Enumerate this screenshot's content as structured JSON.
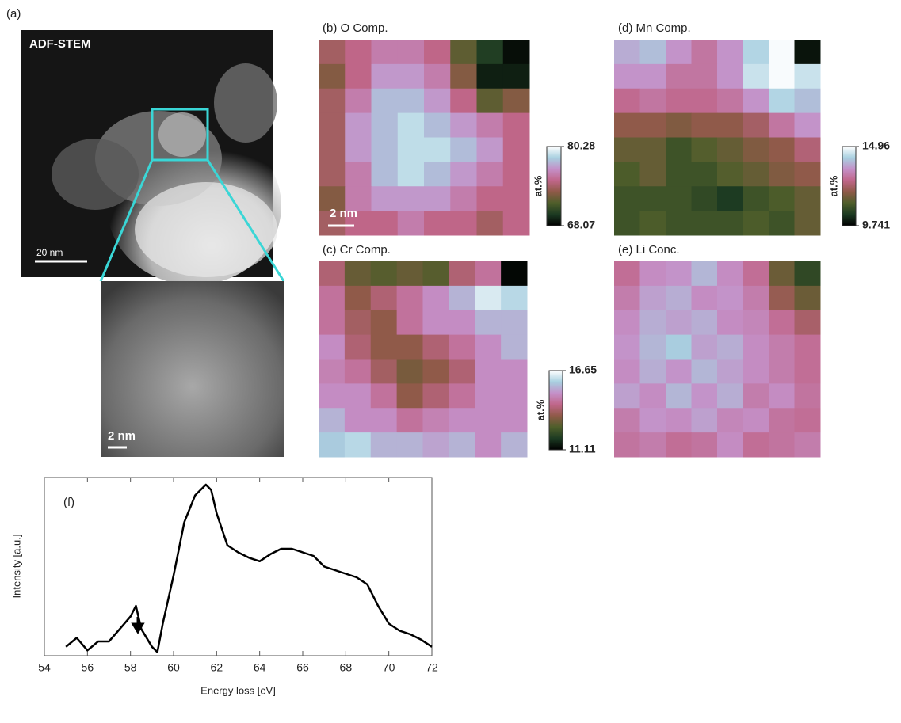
{
  "panel_a": {
    "label": "(a)",
    "image_label": "ADF-STEM",
    "scale_bar": "20 nm",
    "inset_scale_bar": "2 nm"
  },
  "colormap": [
    "#000000",
    "#1c3a22",
    "#4e5e2a",
    "#8f5a48",
    "#c0668a",
    "#c490c8",
    "#a8d0e0",
    "#ffffff"
  ],
  "maps": [
    {
      "label": "(b) O Comp.",
      "scale_bar": "2 nm",
      "vlim": [
        68.07,
        80.28
      ],
      "colorbar": {
        "ticks": [
          68.07,
          80.28
        ],
        "unit": "at.%"
      },
      "values": [
        [
          74,
          75,
          76,
          76,
          75,
          72,
          70,
          68.5
        ],
        [
          73,
          75,
          77,
          77,
          76,
          73,
          69,
          69
        ],
        [
          74,
          76,
          78,
          78,
          77,
          75,
          72,
          73
        ],
        [
          74,
          77,
          78,
          79,
          78,
          77,
          76,
          75
        ],
        [
          74,
          77,
          78,
          79,
          79,
          78,
          77,
          75
        ],
        [
          74,
          76,
          78,
          79,
          78,
          77,
          76,
          75
        ],
        [
          73,
          76,
          77,
          77,
          77,
          76,
          75,
          75
        ],
        [
          74,
          75,
          75,
          76,
          75,
          75,
          74,
          75
        ]
      ]
    },
    {
      "label": "(c) Cr Comp.",
      "vlim": [
        11.11,
        16.65
      ],
      "colorbar": {
        "ticks": [
          11.11,
          16.65
        ],
        "unit": "at.%"
      },
      "values": [
        [
          14,
          13,
          12.8,
          13,
          12.8,
          14,
          14.5,
          11.2
        ],
        [
          14.5,
          13.5,
          14,
          14.5,
          15,
          15.5,
          16.3,
          16
        ],
        [
          14.5,
          13.8,
          13.5,
          14.5,
          15,
          15,
          15.5,
          15.5
        ],
        [
          15,
          14,
          13.5,
          13.5,
          14,
          14.5,
          15,
          15.5
        ],
        [
          14.8,
          14.5,
          13.8,
          13.2,
          13.5,
          14,
          15,
          15
        ],
        [
          15,
          15,
          14.5,
          13.5,
          14,
          14.5,
          15,
          15
        ],
        [
          15.5,
          15,
          15,
          14.5,
          14.8,
          15,
          15,
          15
        ],
        [
          15.8,
          16,
          15.5,
          15.5,
          15.3,
          15.5,
          15,
          15.5
        ]
      ]
    },
    {
      "label": "(d) Mn Comp.",
      "vlim": [
        9.741,
        14.96
      ],
      "colorbar": {
        "ticks": [
          9.741,
          14.96
        ],
        "unit": "at.%"
      },
      "values": [
        [
          13.8,
          14,
          13.5,
          13,
          13.5,
          14.3,
          14.9,
          10
        ],
        [
          13.5,
          13.5,
          13,
          13,
          13.5,
          14.5,
          14.9,
          14.5
        ],
        [
          12.8,
          13,
          12.8,
          12.8,
          13,
          13.5,
          14.3,
          14
        ],
        [
          12,
          12,
          11.8,
          12,
          12,
          12.3,
          13,
          13.5
        ],
        [
          11.5,
          11.5,
          11,
          11.3,
          11.5,
          11.8,
          12,
          12.5
        ],
        [
          11.2,
          11.5,
          11,
          11,
          11.3,
          11.5,
          11.8,
          12
        ],
        [
          11,
          11,
          11,
          10.8,
          10.5,
          11,
          11.2,
          11.5
        ],
        [
          11,
          11.2,
          11,
          11,
          11,
          11.2,
          11,
          11.5
        ]
      ]
    },
    {
      "label": "(e) Li Conc.",
      "vlim": [
        0,
        1
      ],
      "values": [
        [
          0.6,
          0.7,
          0.72,
          0.8,
          0.7,
          0.6,
          0.35,
          0.2
        ],
        [
          0.65,
          0.75,
          0.78,
          0.7,
          0.72,
          0.65,
          0.45,
          0.35
        ],
        [
          0.7,
          0.78,
          0.75,
          0.78,
          0.7,
          0.68,
          0.6,
          0.5
        ],
        [
          0.72,
          0.8,
          0.85,
          0.75,
          0.78,
          0.7,
          0.65,
          0.6
        ],
        [
          0.7,
          0.78,
          0.72,
          0.8,
          0.75,
          0.7,
          0.65,
          0.6
        ],
        [
          0.75,
          0.7,
          0.8,
          0.72,
          0.78,
          0.65,
          0.7,
          0.62
        ],
        [
          0.65,
          0.72,
          0.7,
          0.75,
          0.68,
          0.7,
          0.62,
          0.6
        ],
        [
          0.62,
          0.65,
          0.6,
          0.62,
          0.7,
          0.6,
          0.62,
          0.65
        ]
      ]
    }
  ],
  "chart_data": {
    "type": "line",
    "annotation": "(f)",
    "xlabel": "Energy loss [eV]",
    "ylabel": "Intensity [a.u.]",
    "color": "#000000",
    "x": [
      55,
      55.5,
      56,
      56.5,
      57,
      57.5,
      58,
      58.25,
      58.5,
      59,
      59.25,
      59.5,
      60,
      60.5,
      61,
      61.5,
      61.75,
      62,
      62.5,
      63,
      63.5,
      64,
      64.5,
      65,
      65.5,
      66,
      66.5,
      67,
      67.5,
      68,
      68.5,
      69,
      69.5,
      70,
      70.5,
      71,
      71.5,
      72
    ],
    "values": [
      5,
      10,
      3,
      8,
      8,
      15,
      22,
      28,
      15,
      5,
      2,
      18,
      45,
      75,
      90,
      96,
      93,
      80,
      62,
      58,
      55,
      53,
      57,
      60,
      60,
      58,
      56,
      50,
      48,
      46,
      44,
      40,
      28,
      18,
      14,
      12,
      9,
      5
    ],
    "xlim": [
      54,
      72
    ],
    "xticks": [
      54,
      56,
      58,
      60,
      62,
      64,
      66,
      68,
      70,
      72
    ],
    "ylim": [
      0,
      100
    ]
  }
}
